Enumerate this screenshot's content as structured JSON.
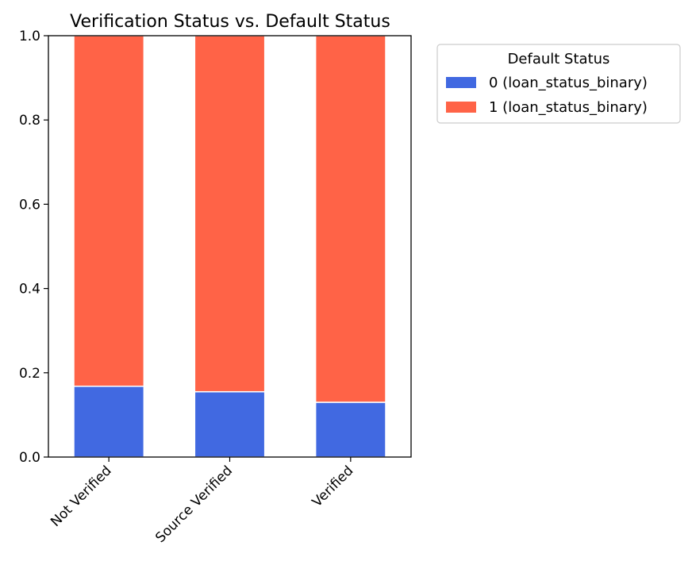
{
  "chart_data": {
    "type": "bar",
    "stacked": true,
    "title": "Verification Status vs. Default Status",
    "xlabel": "",
    "ylabel": "",
    "ylim": [
      0,
      1.0
    ],
    "yticks": [
      "0.0",
      "0.2",
      "0.4",
      "0.6",
      "0.8",
      "1.0"
    ],
    "categories": [
      "Not Verified",
      "Source Verified",
      "Verified"
    ],
    "series": [
      {
        "name": "0 (loan_status_binary)",
        "color": "#4169e1",
        "values": [
          0.168,
          0.155,
          0.13
        ]
      },
      {
        "name": "1 (loan_status_binary)",
        "color": "#ff6347",
        "values": [
          0.832,
          0.845,
          0.87
        ]
      }
    ],
    "legend": {
      "title": "Default Status",
      "position": "outside-top-right"
    },
    "grid": false
  }
}
